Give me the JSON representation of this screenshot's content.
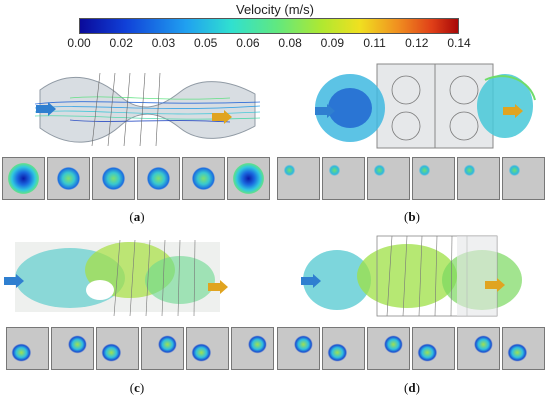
{
  "colorbar": {
    "title": "Velocity (m/s)",
    "ticks": [
      "0.00",
      "0.02",
      "0.03",
      "0.05",
      "0.06",
      "0.08",
      "0.09",
      "0.11",
      "0.12",
      "0.14"
    ],
    "colors": [
      "#0a1aa8",
      "#1a6be0",
      "#2cc0e8",
      "#50e0a0",
      "#8fe040",
      "#d8e020",
      "#f0a020",
      "#e05018",
      "#b81010"
    ]
  },
  "panels": [
    {
      "id": "a",
      "caption": "a"
    },
    {
      "id": "b",
      "caption": "b"
    },
    {
      "id": "c",
      "caption": "c"
    },
    {
      "id": "d",
      "caption": "d"
    }
  ]
}
